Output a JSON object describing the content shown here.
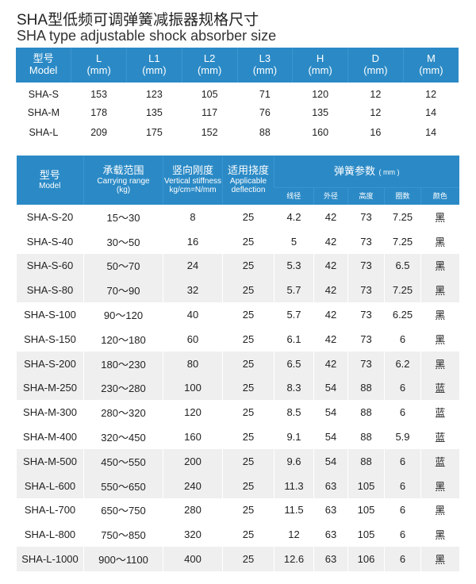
{
  "title": "SHA型低频可调弹簧减振器规格尺寸",
  "subtitle": "SHA type adjustable shock absorber size",
  "colors": {
    "header": "#2b8ac6",
    "stripe": "#efefef"
  },
  "table1": {
    "headers": [
      [
        "型号",
        "Model"
      ],
      [
        "L",
        "(mm)"
      ],
      [
        "L1",
        "(mm)"
      ],
      [
        "L2",
        "(mm)"
      ],
      [
        "L3",
        "(mm)"
      ],
      [
        "H",
        "(mm)"
      ],
      [
        "D",
        "(mm)"
      ],
      [
        "M",
        "(mm)"
      ]
    ],
    "rows": [
      [
        "SHA-S",
        "153",
        "123",
        "105",
        "71",
        "120",
        "12",
        "12"
      ],
      [
        "SHA-M",
        "178",
        "135",
        "117",
        "76",
        "135",
        "12",
        "14"
      ],
      [
        "SHA-L",
        "209",
        "175",
        "152",
        "88",
        "160",
        "16",
        "14"
      ]
    ]
  },
  "table2": {
    "headers": {
      "model": {
        "cn": "型号",
        "en": "Model"
      },
      "range": {
        "cn": "承载范围",
        "en": "Carrying range",
        "unit": "(kg)"
      },
      "stiff": {
        "cn": "竖向刚度",
        "en": "Vertical stiffness",
        "unit": "kg/cm=N/mm"
      },
      "defl": {
        "cn": "适用挠度",
        "en": "Applicable",
        "unit": "deflection"
      },
      "spring": {
        "cn": "弹簧参数",
        "unit": "( mm )"
      },
      "sub": [
        "线径",
        "外径",
        "高度",
        "圈数",
        "颜色"
      ]
    },
    "rows": [
      [
        "SHA-S-20",
        "15～30",
        "8",
        "25",
        "4.2",
        "42",
        "73",
        "7.25",
        "黑"
      ],
      [
        "SHA-S-40",
        "30～50",
        "16",
        "25",
        "5",
        "42",
        "73",
        "7.25",
        "黑"
      ],
      [
        "SHA-S-60",
        "50～70",
        "24",
        "25",
        "5.3",
        "42",
        "73",
        "6.5",
        "黑"
      ],
      [
        "SHA-S-80",
        "70～90",
        "32",
        "25",
        "5.7",
        "42",
        "73",
        "7.25",
        "黑"
      ],
      [
        "SHA-S-100",
        "90～120",
        "40",
        "25",
        "5.7",
        "42",
        "73",
        "6.25",
        "黑"
      ],
      [
        "SHA-S-150",
        "120～180",
        "60",
        "25",
        "6.1",
        "42",
        "73",
        "6",
        "黑"
      ],
      [
        "SHA-S-200",
        "180～230",
        "80",
        "25",
        "6.5",
        "42",
        "73",
        "6.2",
        "黑"
      ],
      [
        "SHA-M-250",
        "230～280",
        "100",
        "25",
        "8.3",
        "54",
        "88",
        "6",
        "蓝"
      ],
      [
        "SHA-M-300",
        "280～320",
        "120",
        "25",
        "8.5",
        "54",
        "88",
        "6",
        "蓝"
      ],
      [
        "SHA-M-400",
        "320～450",
        "160",
        "25",
        "9.1",
        "54",
        "88",
        "5.9",
        "蓝"
      ],
      [
        "SHA-M-500",
        "450～550",
        "200",
        "25",
        "9.6",
        "54",
        "88",
        "6",
        "蓝"
      ],
      [
        "SHA-L-600",
        "550～650",
        "240",
        "25",
        "11.3",
        "63",
        "105",
        "6",
        "黑"
      ],
      [
        "SHA-L-700",
        "650～750",
        "280",
        "25",
        "11.5",
        "63",
        "105",
        "6",
        "黑"
      ],
      [
        "SHA-L-800",
        "750～850",
        "320",
        "25",
        "12",
        "63",
        "105",
        "6",
        "黑"
      ],
      [
        "SHA-L-1000",
        "900～1100",
        "400",
        "25",
        "12.6",
        "63",
        "106",
        "6",
        "黑"
      ]
    ]
  }
}
